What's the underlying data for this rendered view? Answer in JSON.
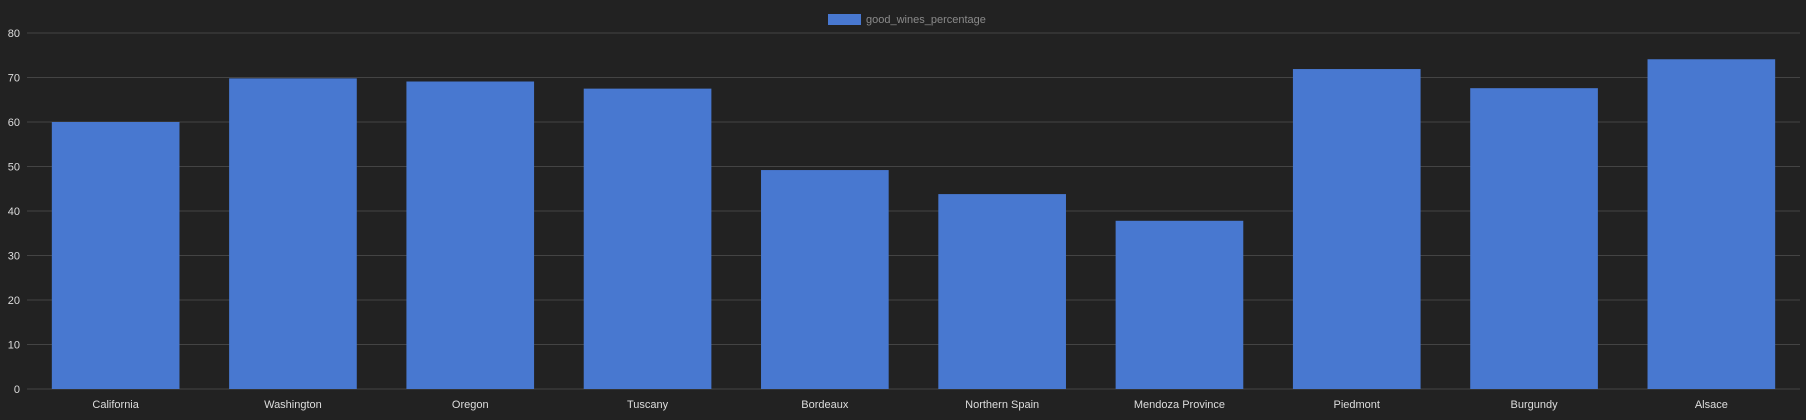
{
  "chart_data": {
    "type": "bar",
    "categories": [
      "California",
      "Washington",
      "Oregon",
      "Tuscany",
      "Bordeaux",
      "Northern Spain",
      "Mendoza Province",
      "Piedmont",
      "Burgundy",
      "Alsace"
    ],
    "series": [
      {
        "name": "good_wines_percentage",
        "values": [
          60.0,
          69.8,
          69.1,
          67.5,
          49.2,
          43.8,
          37.8,
          71.9,
          67.6,
          74.1
        ],
        "color": "#4878d0"
      }
    ],
    "ylim": [
      0,
      80
    ],
    "yticks": [
      0,
      10,
      20,
      30,
      40,
      50,
      60,
      70,
      80
    ],
    "grid": true,
    "legend_position": "top-center",
    "background_color": "#222222",
    "grid_color": "#444444",
    "text_color": "#dddddd"
  }
}
